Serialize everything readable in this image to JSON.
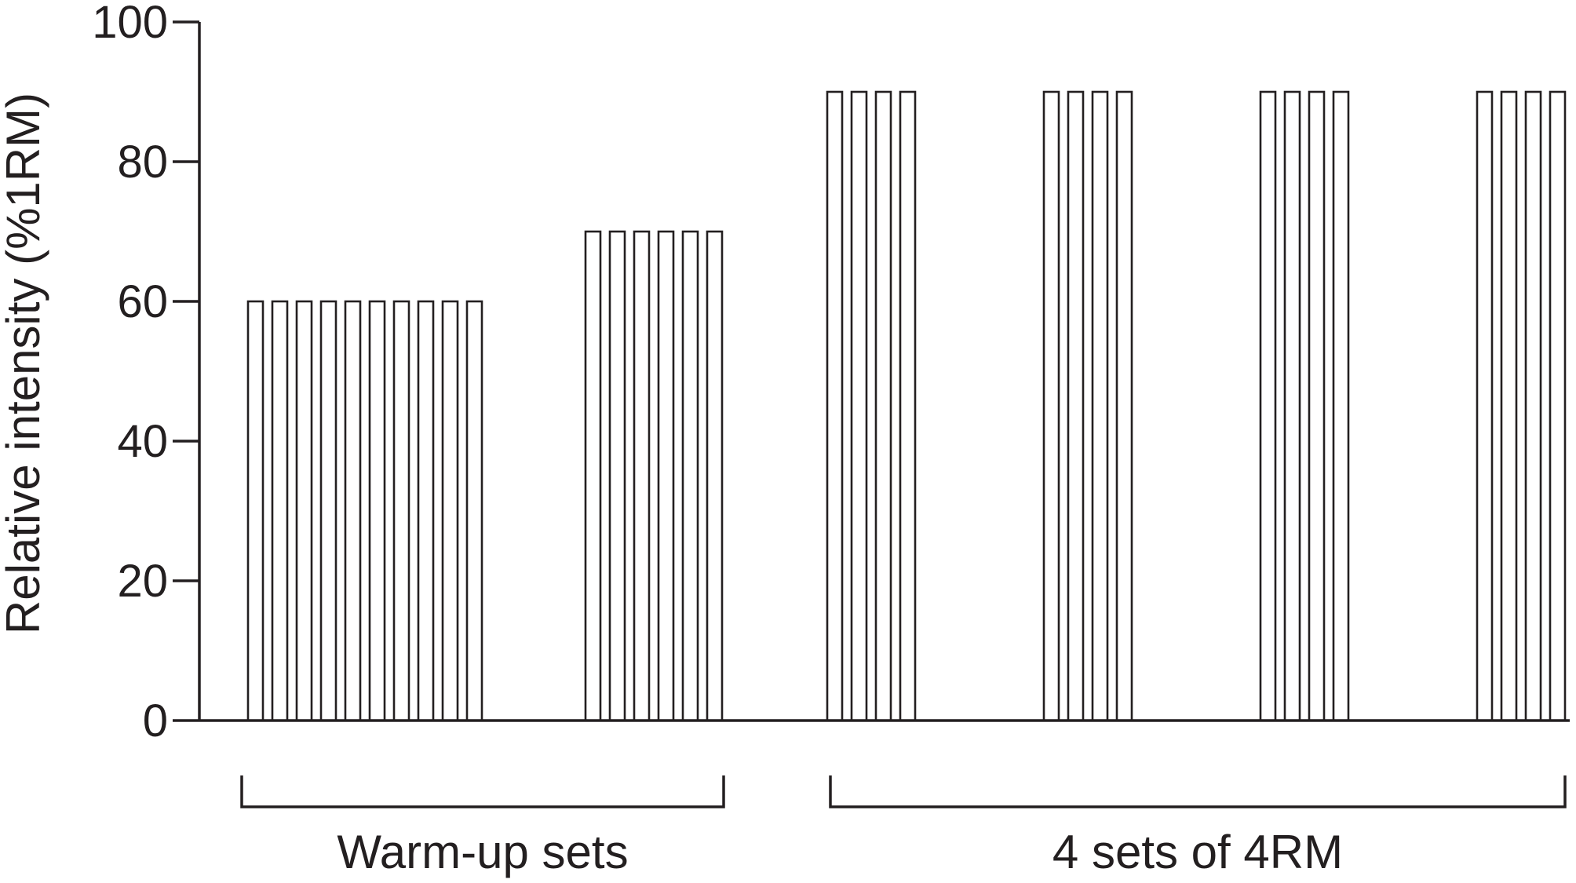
{
  "chart_data": {
    "type": "bar",
    "ylabel": "Relative intensity (%1RM)",
    "ylim": [
      0,
      100
    ],
    "yticks": [
      "0",
      "20",
      "40",
      "60",
      "80",
      "100"
    ],
    "series": [
      {
        "values": [
          60,
          60,
          60,
          60,
          60,
          60,
          60,
          60,
          60,
          60
        ]
      },
      {
        "values": [
          70,
          70,
          70,
          70,
          70,
          70
        ]
      },
      {
        "values": [
          90,
          90,
          90,
          90
        ]
      },
      {
        "values": [
          90,
          90,
          90,
          90
        ]
      },
      {
        "values": [
          90,
          90,
          90,
          90
        ]
      },
      {
        "values": [
          90,
          90,
          90,
          90
        ]
      }
    ],
    "groups": [
      {
        "label": "Warm-up sets",
        "series_range": [
          0,
          1
        ]
      },
      {
        "label": "4 sets of 4RM",
        "series_range": [
          2,
          5
        ]
      }
    ]
  },
  "colors": {
    "stroke": "#231f20",
    "bar_fill": "#ffffff",
    "background": "#ffffff"
  }
}
